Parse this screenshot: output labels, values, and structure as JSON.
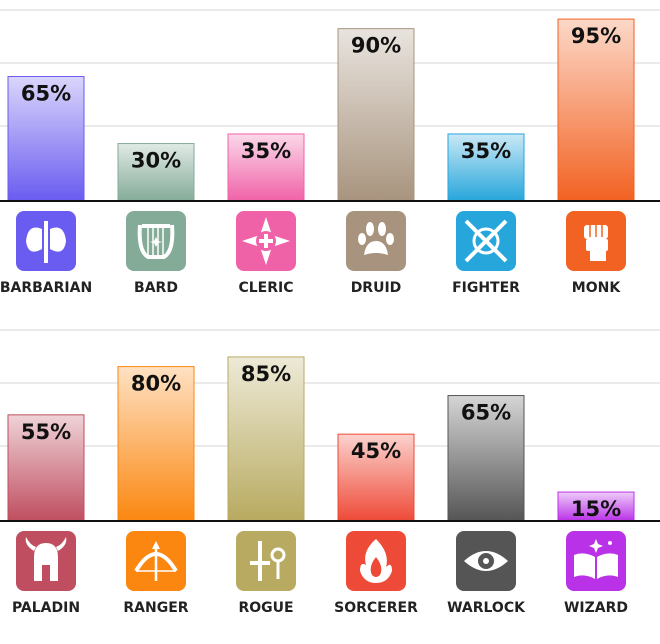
{
  "chart_data": [
    {
      "type": "bar",
      "categories": [
        "BARBARIAN",
        "BARD",
        "CLERIC",
        "DRUID",
        "FIGHTER",
        "MONK"
      ],
      "values": [
        65,
        30,
        35,
        90,
        35,
        95
      ],
      "value_labels": [
        "65%",
        "30%",
        "35%",
        "90%",
        "35%",
        "95%"
      ],
      "ylim": [
        0,
        100
      ],
      "grid": true,
      "colors": [
        "#6a5cf0",
        "#84ab98",
        "#f062a8",
        "#a8947e",
        "#27a6db",
        "#f26222"
      ],
      "icons": [
        "double-axe-icon",
        "lyre-icon",
        "holy-symbol-icon",
        "paw-icon",
        "crossed-swords-shield-icon",
        "fist-icon"
      ],
      "title": "",
      "xlabel": "",
      "ylabel": ""
    },
    {
      "type": "bar",
      "categories": [
        "PALADIN",
        "RANGER",
        "ROGUE",
        "SORCERER",
        "WARLOCK",
        "WIZARD"
      ],
      "values": [
        55,
        80,
        85,
        45,
        65,
        15
      ],
      "value_labels": [
        "55%",
        "80%",
        "85%",
        "45%",
        "65%",
        "15%"
      ],
      "ylim": [
        0,
        100
      ],
      "grid": true,
      "colors": [
        "#bf4e60",
        "#fb8710",
        "#b8aa60",
        "#ee4a38",
        "#555555",
        "#ba32e8"
      ],
      "icons": [
        "helmet-icon",
        "bow-icon",
        "dagger-key-icon",
        "flame-icon",
        "eye-icon",
        "spellbook-icon"
      ],
      "title": "",
      "xlabel": "",
      "ylabel": ""
    }
  ]
}
